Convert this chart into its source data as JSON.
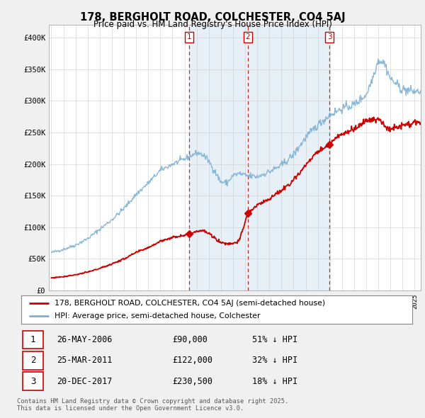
{
  "title": "178, BERGHOLT ROAD, COLCHESTER, CO4 5AJ",
  "subtitle": "Price paid vs. HM Land Registry's House Price Index (HPI)",
  "ylim": [
    0,
    420000
  ],
  "yticks": [
    0,
    50000,
    100000,
    150000,
    200000,
    250000,
    300000,
    350000,
    400000
  ],
  "ytick_labels": [
    "£0",
    "£50K",
    "£100K",
    "£150K",
    "£200K",
    "£250K",
    "£300K",
    "£350K",
    "£400K"
  ],
  "xlim": [
    1994.8,
    2025.5
  ],
  "transactions": [
    {
      "date": 2006.4,
      "price": 90000,
      "label": "1",
      "text": "26-MAY-2006",
      "amount": "£90,000",
      "hpi_text": "51% ↓ HPI"
    },
    {
      "date": 2011.23,
      "price": 122000,
      "label": "2",
      "text": "25-MAR-2011",
      "amount": "£122,000",
      "hpi_text": "32% ↓ HPI"
    },
    {
      "date": 2017.97,
      "price": 230500,
      "label": "3",
      "text": "20-DEC-2017",
      "amount": "£230,500",
      "hpi_text": "18% ↓ HPI"
    }
  ],
  "legend_line1": "178, BERGHOLT ROAD, COLCHESTER, CO4 5AJ (semi-detached house)",
  "legend_line2": "HPI: Average price, semi-detached house, Colchester",
  "footer": "Contains HM Land Registry data © Crown copyright and database right 2025.\nThis data is licensed under the Open Government Licence v3.0.",
  "red_color": "#cc0000",
  "blue_color": "#7bafd4",
  "blue_fill": "#ddeeff",
  "background_color": "#f0f0f0",
  "plot_bg_color": "#ffffff"
}
